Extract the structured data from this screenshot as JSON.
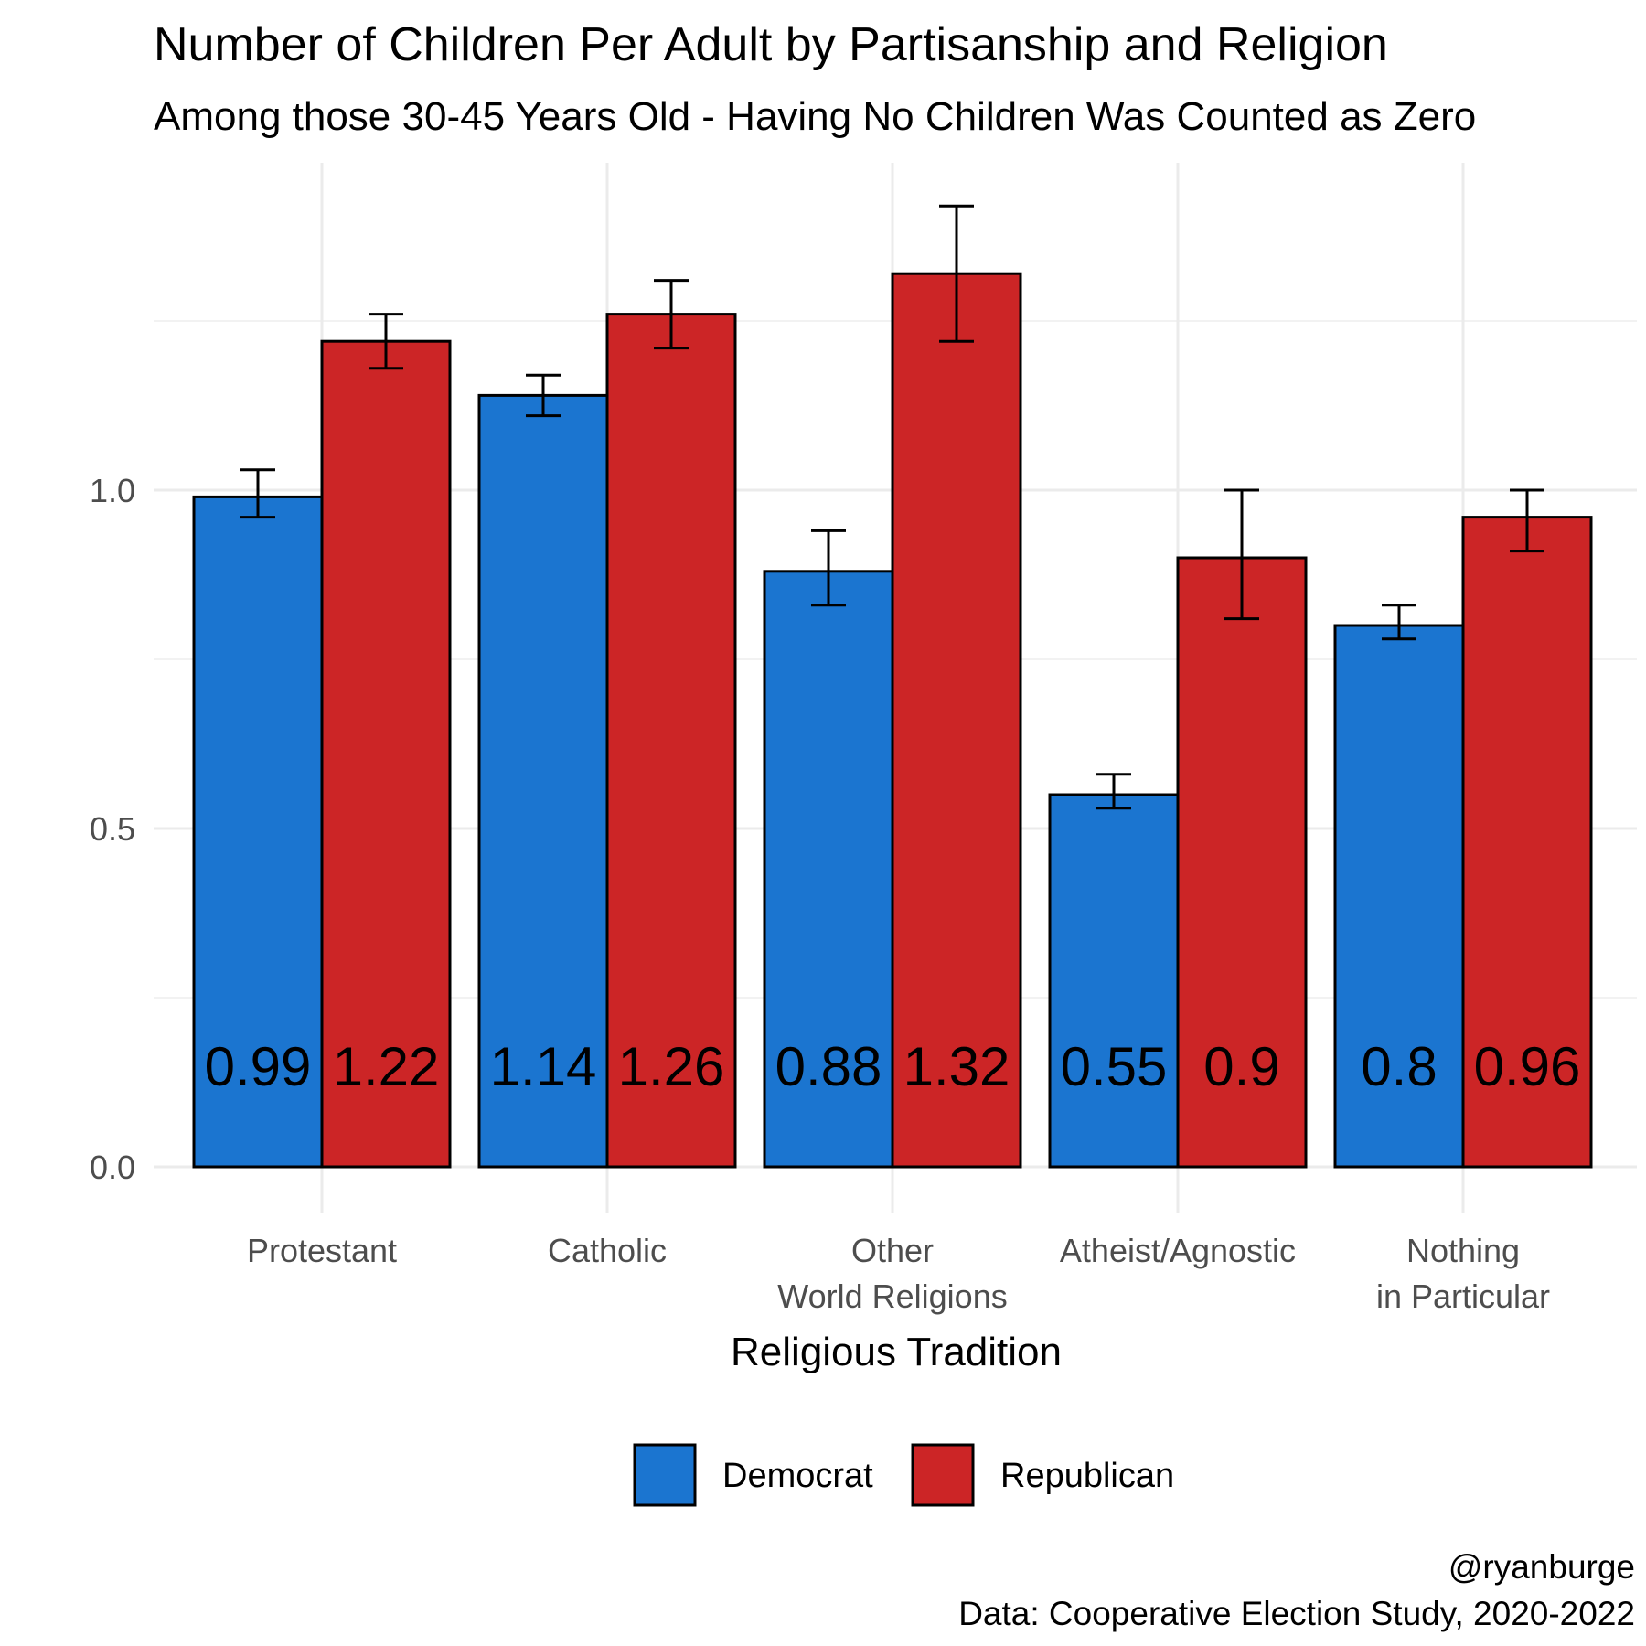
{
  "chart_data": {
    "type": "bar",
    "title": "Number of Children Per Adult by Partisanship and Religion",
    "subtitle": "Among those 30-45 Years Old - Having No Children Was Counted as Zero",
    "xlabel": "Religious Tradition",
    "ylabel": "",
    "ylim": [
      0,
      1.45
    ],
    "yticks": [
      "0.0",
      "0.5",
      "1.0"
    ],
    "categories": [
      [
        "Protestant"
      ],
      [
        "Catholic"
      ],
      [
        "Other",
        "World Religions"
      ],
      [
        "Atheist/Agnostic"
      ],
      [
        "Nothing",
        "in Particular"
      ]
    ],
    "series": [
      {
        "name": "Democrat",
        "color": "#1b75d0",
        "values": [
          0.99,
          1.14,
          0.88,
          0.55,
          0.8
        ],
        "labels": [
          "0.99",
          "1.14",
          "0.88",
          "0.55",
          "0.8"
        ],
        "err_low": [
          0.96,
          1.11,
          0.83,
          0.53,
          0.78
        ],
        "err_high": [
          1.03,
          1.17,
          0.94,
          0.58,
          0.83
        ]
      },
      {
        "name": "Republican",
        "color": "#cc2526",
        "values": [
          1.22,
          1.26,
          1.32,
          0.9,
          0.96
        ],
        "labels": [
          "1.22",
          "1.26",
          "1.32",
          "0.9",
          "0.96"
        ],
        "err_low": [
          1.18,
          1.21,
          1.22,
          0.81,
          0.91
        ],
        "err_high": [
          1.26,
          1.31,
          1.42,
          1.0,
          1.0
        ]
      }
    ],
    "grid": true,
    "legend": "bottom"
  },
  "caption": {
    "line1": "@ryanburge",
    "line2": "Data: Cooperative Election Study, 2020-2022"
  }
}
